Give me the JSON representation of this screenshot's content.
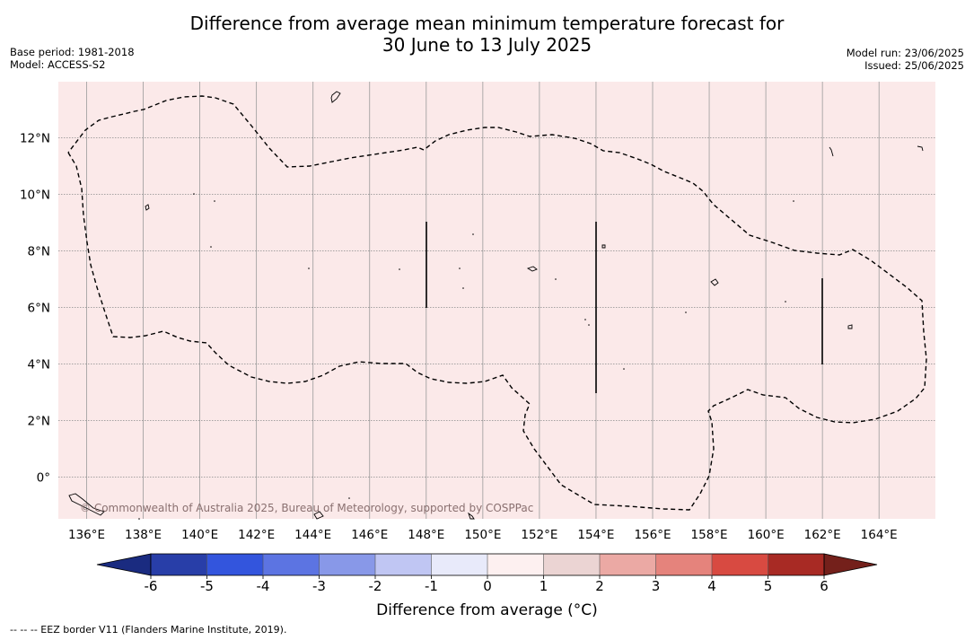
{
  "title": {
    "line1": "Difference from average mean minimum temperature forecast for",
    "line2": "30 June to 13 July 2025"
  },
  "meta": {
    "base_period": "Base period: 1981-2018",
    "model": "Model: ACCESS-S2",
    "model_run": "Model run: 23/06/2025",
    "issued": "Issued: 25/06/2025"
  },
  "map": {
    "background_color": "#fbe9e9",
    "lon_labels": [
      "136°E",
      "138°E",
      "140°E",
      "142°E",
      "144°E",
      "146°E",
      "148°E",
      "150°E",
      "152°E",
      "154°E",
      "156°E",
      "158°E",
      "160°E",
      "162°E",
      "164°E"
    ],
    "lat_labels": [
      "12°N",
      "10°N",
      "8°N",
      "6°N",
      "4°N",
      "2°N",
      "0°"
    ],
    "copyright": "© Commonwealth of Australia 2025, Bureau of Meteorology, supported by COSPPac"
  },
  "colorbar": {
    "ticks": [
      "-6",
      "-5",
      "-4",
      "-3",
      "-2",
      "-1",
      "0",
      "1",
      "2",
      "3",
      "4",
      "5",
      "6"
    ],
    "colors": [
      "#283ea8",
      "#3355dd",
      "#5c74e2",
      "#8898e8",
      "#c0c6f3",
      "#e8eafa",
      "#fdf0f0",
      "#ebd4d3",
      "#eba9a4",
      "#e5837c",
      "#d84a41",
      "#a82a24"
    ],
    "under_color": "#1a2b80",
    "over_color": "#74201b",
    "label": "Difference from average (°C)"
  },
  "footer": "-- -- -- EEZ border V11 (Flanders Marine Institute, 2019)."
}
